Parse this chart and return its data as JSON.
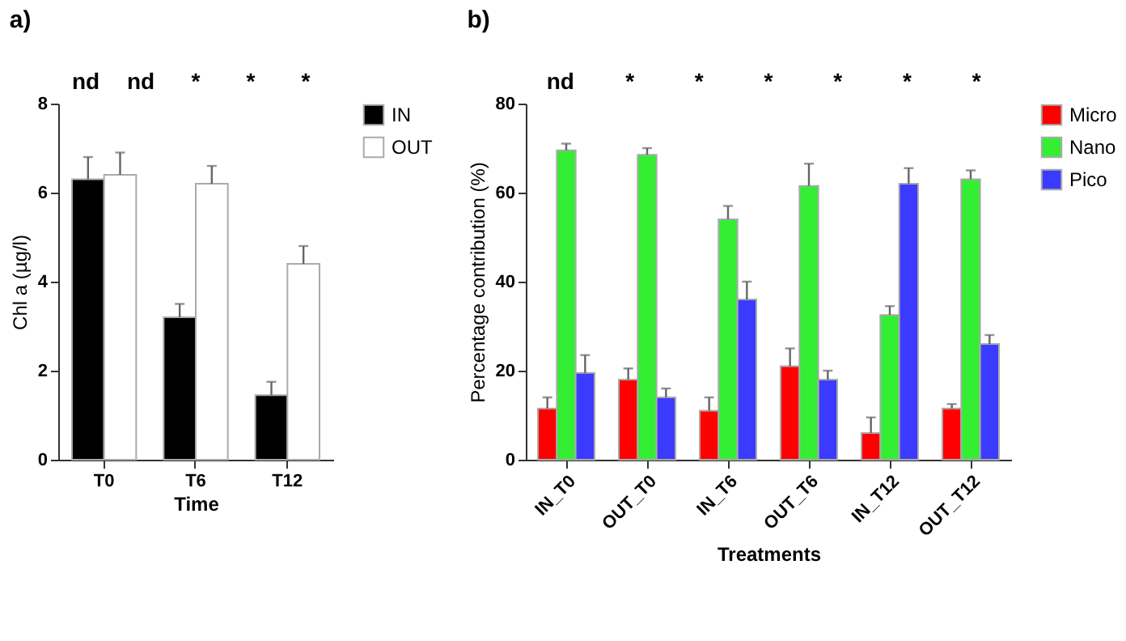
{
  "chart_data": [
    {
      "type": "bar",
      "title": "a)",
      "xlabel": "Time",
      "ylabel": "Chl a (µg/l)",
      "categories": [
        "T0",
        "T6",
        "T12"
      ],
      "ylim": [
        0,
        8
      ],
      "yticks": [
        0,
        2,
        4,
        6,
        8
      ],
      "grid": false,
      "legend": "right",
      "series": [
        {
          "name": "IN",
          "color": "#000000",
          "values": [
            6.3,
            3.2,
            1.45
          ],
          "errors": [
            0.5,
            0.3,
            0.3
          ]
        },
        {
          "name": "OUT",
          "color": "#ffffff",
          "values": [
            6.4,
            6.2,
            4.4
          ],
          "errors": [
            0.5,
            0.4,
            0.4
          ]
        }
      ],
      "annotations": [
        "nd",
        "nd",
        "*",
        "*",
        "*"
      ]
    },
    {
      "type": "bar",
      "title": "b)",
      "xlabel": "Treatments",
      "ylabel": "Percentage contribution (%)",
      "categories": [
        "IN_T0",
        "OUT_T0",
        "IN_T6",
        "OUT_T6",
        "IN_T12",
        "OUT_T12"
      ],
      "ylim": [
        0,
        80
      ],
      "yticks": [
        0,
        20,
        40,
        60,
        80
      ],
      "grid": false,
      "legend": "right",
      "series": [
        {
          "name": "Micro",
          "color": "#ff0000",
          "values": [
            11.5,
            18,
            11,
            21,
            6,
            11.5
          ],
          "errors": [
            2.5,
            2.5,
            3,
            4,
            3.5,
            1
          ]
        },
        {
          "name": "Nano",
          "color": "#33ee33",
          "values": [
            69.5,
            68.5,
            54,
            61.5,
            32.5,
            63
          ],
          "errors": [
            1.5,
            1.5,
            3,
            5,
            2,
            2
          ]
        },
        {
          "name": "Pico",
          "color": "#3b3bff",
          "values": [
            19.5,
            14,
            36,
            18,
            62,
            26
          ],
          "errors": [
            4,
            2,
            4,
            2,
            3.5,
            2
          ]
        }
      ],
      "annotations": [
        "nd",
        "*",
        "*",
        "*",
        "*",
        "*",
        "*"
      ]
    }
  ]
}
